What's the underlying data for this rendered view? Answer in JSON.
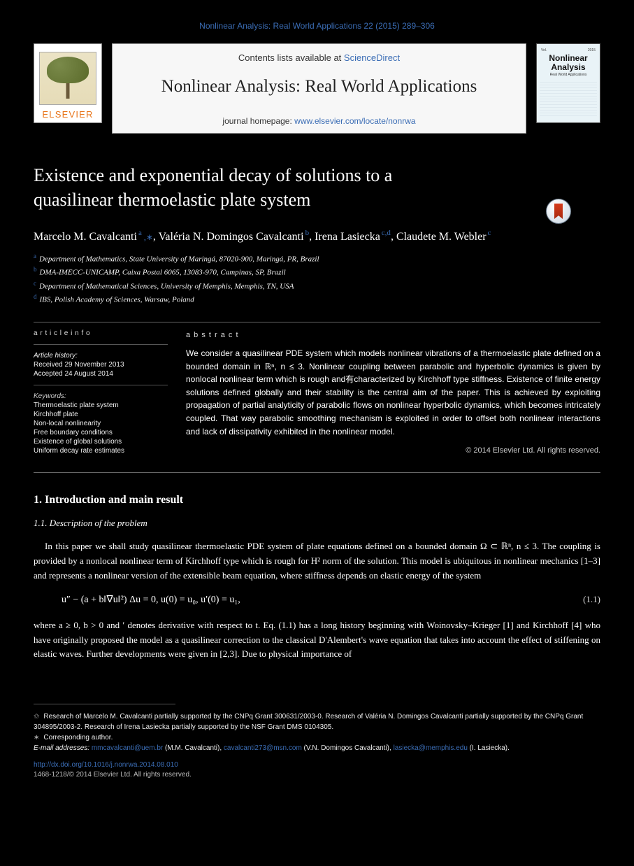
{
  "top_citation": "Nonlinear Analysis: Real World Applications 22 (2015) 289–306",
  "header": {
    "contents_prefix": "Contents lists available at ",
    "contents_link": "ScienceDirect",
    "journal_name": "Nonlinear Analysis: Real World Applications",
    "homepage_prefix": "journal homepage: ",
    "homepage_link": "www.elsevier.com/locate/nonrwa",
    "cover": {
      "title1": "Nonlinear",
      "title2": "Analysis",
      "subtitle": "Real World Applications"
    },
    "elsevier": "ELSEVIER"
  },
  "article_title": "Existence and exponential decay of solutions to a quasilinear thermoelastic plate system",
  "authors": [
    {
      "name": "Marcelo M. Cavalcanti",
      "marks": "a,∗"
    },
    {
      "name": "Valéria N. Domingos Cavalcanti",
      "marks": "b"
    },
    {
      "name": "Irena Lasiecka",
      "marks": "c,d"
    },
    {
      "name": "Claudete M. Webler",
      "marks": "c"
    }
  ],
  "affiliations": [
    {
      "mark": "a",
      "text": "Department of Mathematics, State University of Maringá, 87020-900, Maringá, PR, Brazil"
    },
    {
      "mark": "b",
      "text": "DMA-IMECC-UNICAMP, Caixa Postal 6065, 13083-970, Campinas, SP, Brazil"
    },
    {
      "mark": "c",
      "text": "Department of Mathematical Sciences, University of Memphis, Memphis, TN, USA"
    },
    {
      "mark": "d",
      "text": "IBS, Polish Academy of Sciences, Warsaw, Poland"
    }
  ],
  "article_info": {
    "heading": "a r t i c l e   i n f o",
    "history_hd": "Article history:",
    "received": "Received 29 November 2013",
    "accepted": "Accepted 24 August 2014",
    "keywords_hd": "Keywords:",
    "keywords": [
      "Thermoelastic plate system",
      "Kirchhoff plate",
      "Non-local nonlinearity",
      "Free boundary conditions",
      "Existence of global solutions",
      "Uniform decay rate estimates"
    ]
  },
  "abstract": {
    "heading": "a b s t r a c t",
    "text": "We consider a quasilinear PDE system which models nonlinear vibrations of a thermoelastic plate defined on a bounded domain in ℝⁿ, n ≤ 3. Nonlinear coupling between parabolic and hyperbolic dynamics is given by nonlocal nonlinear term which is rough and有characterized by Kirchhoff type stiffness. Existence of finite energy solutions defined globally and their stability is the central aim of the paper. This is achieved by exploiting propagation of partial analyticity of parabolic flows on nonlinear hyperbolic dynamics, which becomes intricately coupled. That way parabolic smoothing mechanism is exploited in order to offset both nonlinear interactions and lack of dissipativity exhibited in the nonlinear model.",
    "copyright": "© 2014 Elsevier Ltd. All rights reserved."
  },
  "intro": {
    "heading": "1. Introduction and main result",
    "p1_1": "1.1. Description of the problem",
    "p2": "In this paper we shall study quasilinear thermoelastic PDE system of plate equations defined on a bounded domain Ω ⊂ ℝⁿ, n ≤ 3. The coupling is provided by a nonlocal nonlinear term of Kirchhoff type which is rough for H² norm of the solution. This model is ubiquitous in nonlinear mechanics [1–3] and represents a nonlinear version of the extensible beam equation, where stiffness depends on elastic energy of the system",
    "eqn1": "u″ − (a + b‖∇u‖²) Δu = 0,   u(0) = u₀,   u′(0) = u₁,",
    "eqn_num": "(1.1)",
    "p3": "where a ≥ 0, b > 0 and ′ denotes derivative with respect to t. Eq. (1.1) has a long history beginning with Woinovsky–Krieger [1] and Kirchhoff [4] who have originally proposed the model as a quasilinear correction to the classical D'Alembert's wave equation that takes into account the effect of stiffening on elastic waves. Further developments were given in [2,3]. Due to physical importance of"
  },
  "footnotes": {
    "funding": "Research of Marcelo M. Cavalcanti partially supported by the CNPq Grant 300631/2003-0. Research of Valéria N. Domingos Cavalcanti partially supported by the CNPq Grant 304895/2003-2. Research of Irena Lasiecka partially supported by the NSF Grant DMS 0104305.",
    "corr": "Corresponding author.",
    "emails_label": "E-mail addresses: ",
    "emails": [
      {
        "addr": "mmcavalcanti@uem.br",
        "who": " (M.M. Cavalcanti), "
      },
      {
        "addr": "cavalcanti273@msn.com",
        "who": " (V.N. Domingos Cavalcanti), "
      },
      {
        "addr": "lasiecka@memphis.edu",
        "who": " (I. Lasiecka)."
      }
    ]
  },
  "doi": {
    "link": "http://dx.doi.org/10.1016/j.nonrwa.2014.08.010",
    "issn": "1468-1218/© 2014 Elsevier Ltd. All rights reserved."
  }
}
